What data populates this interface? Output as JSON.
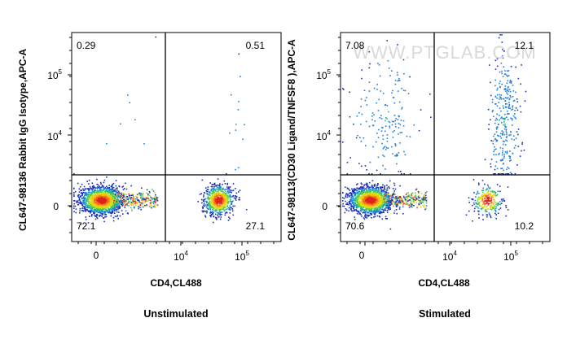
{
  "watermark": "WWW.PTGLAB.COM",
  "chart_data": [
    {
      "type": "scatter",
      "subtype": "flow-cytometry-density-dot-plot",
      "title": "",
      "condition": "Unstimulated",
      "xlabel": "CD4,CL488",
      "ylabel": "CL647-98136 Rabbit IgG Isotype,APC-A",
      "x_ticks": [
        "0",
        "10^4",
        "10^5"
      ],
      "y_ticks": [
        "0",
        "10^4",
        "10^5"
      ],
      "quadrant_percentages": {
        "upper_left": "0.29",
        "upper_right": "0.51",
        "lower_left": "72.1",
        "lower_right": "27.1"
      },
      "populations": [
        {
          "quadrant": "lower_left",
          "percent": 72.1
        },
        {
          "quadrant": "lower_right",
          "percent": 27.1
        },
        {
          "quadrant": "upper_left",
          "percent": 0.29
        },
        {
          "quadrant": "upper_right",
          "percent": 0.51
        }
      ]
    },
    {
      "type": "scatter",
      "subtype": "flow-cytometry-density-dot-plot",
      "title": "",
      "condition": "Stimulated",
      "xlabel": "CD4,CL488",
      "ylabel": "CL647-98113(CD30 Ligand/TNFSF8 ),APC-A",
      "x_ticks": [
        "0",
        "10^4",
        "10^5"
      ],
      "y_ticks": [
        "0",
        "10^4",
        "10^5"
      ],
      "quadrant_percentages": {
        "upper_left": "7.08",
        "upper_right": "12.1",
        "lower_left": "70.6",
        "lower_right": "10.2"
      },
      "populations": [
        {
          "quadrant": "lower_left",
          "percent": 70.6
        },
        {
          "quadrant": "lower_right",
          "percent": 10.2
        },
        {
          "quadrant": "upper_left",
          "percent": 7.08
        },
        {
          "quadrant": "upper_right",
          "percent": 12.1
        }
      ]
    }
  ]
}
